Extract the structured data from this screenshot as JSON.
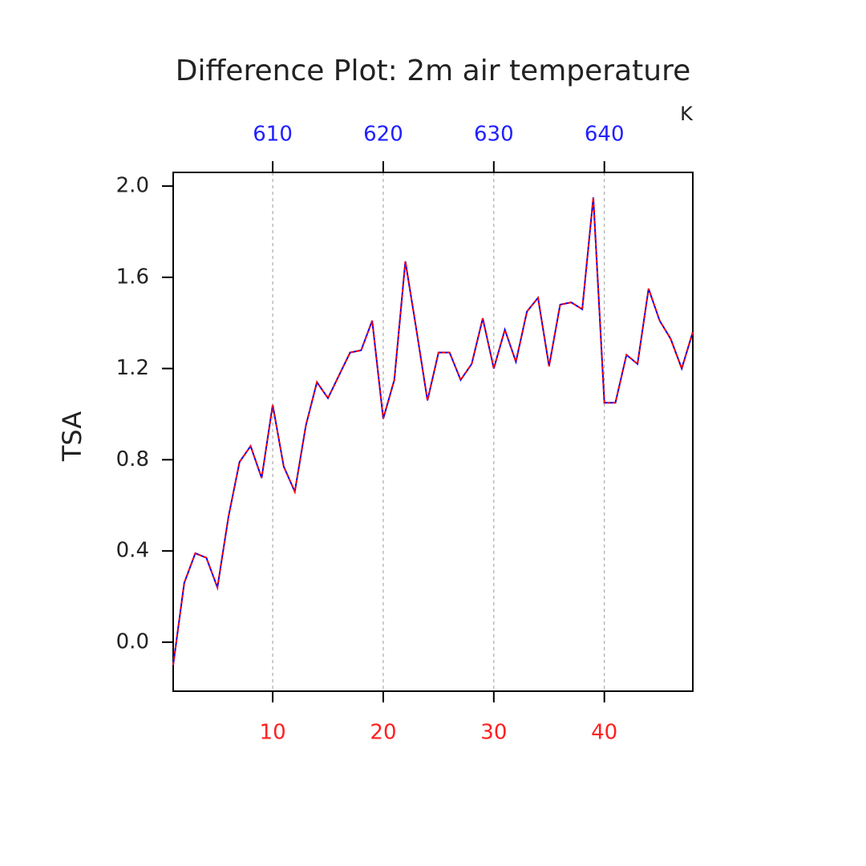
{
  "chart_data": {
    "type": "line",
    "title": "Difference Plot: 2m air temperature",
    "ylabel": "TSA",
    "x2label": "K",
    "x": [
      1,
      2,
      3,
      4,
      5,
      6,
      7,
      8,
      9,
      10,
      11,
      12,
      13,
      14,
      15,
      16,
      17,
      18,
      19,
      20,
      21,
      22,
      23,
      24,
      25,
      26,
      27,
      28,
      29,
      30,
      31,
      32,
      33,
      34,
      35,
      36,
      37,
      38,
      39,
      40,
      41,
      42,
      43,
      44,
      45,
      46,
      47,
      48
    ],
    "series": [
      {
        "color": "#0000ff",
        "dash": false,
        "values": [
          -0.1,
          0.26,
          0.39,
          0.37,
          0.24,
          0.55,
          0.79,
          0.86,
          0.72,
          1.04,
          0.77,
          0.66,
          0.95,
          1.14,
          1.07,
          1.17,
          1.27,
          1.28,
          1.41,
          0.98,
          1.15,
          1.67,
          1.37,
          1.06,
          1.27,
          1.27,
          1.15,
          1.22,
          1.42,
          1.2,
          1.37,
          1.23,
          1.45,
          1.51,
          1.21,
          1.48,
          1.49,
          1.46,
          1.95,
          1.05,
          1.05,
          1.26,
          1.22,
          1.55,
          1.41,
          1.33,
          1.2,
          1.36
        ]
      },
      {
        "color": "#ff0000",
        "dash": true,
        "values": [
          -0.1,
          0.26,
          0.39,
          0.37,
          0.24,
          0.55,
          0.79,
          0.86,
          0.72,
          1.04,
          0.77,
          0.66,
          0.95,
          1.14,
          1.07,
          1.17,
          1.27,
          1.28,
          1.41,
          0.98,
          1.15,
          1.67,
          1.37,
          1.06,
          1.27,
          1.27,
          1.15,
          1.22,
          1.42,
          1.2,
          1.37,
          1.23,
          1.45,
          1.51,
          1.21,
          1.48,
          1.49,
          1.46,
          1.95,
          1.05,
          1.05,
          1.26,
          1.22,
          1.55,
          1.41,
          1.33,
          1.2,
          1.36
        ]
      }
    ],
    "xlim": [
      1,
      48
    ],
    "xticks": [
      10,
      20,
      30,
      40
    ],
    "xtick_color": "#ff2020",
    "x2lim": [
      601,
      648
    ],
    "x2ticks": [
      610,
      620,
      630,
      640
    ],
    "x2tick_color": "#2020ff",
    "ylim": [
      -0.215,
      2.06
    ],
    "yticks": [
      {
        "value": 0,
        "label": "0.0"
      },
      0.4,
      0.8,
      1.2,
      1.6,
      {
        "value": 2,
        "label": "2.0"
      }
    ],
    "xgrid": true
  }
}
